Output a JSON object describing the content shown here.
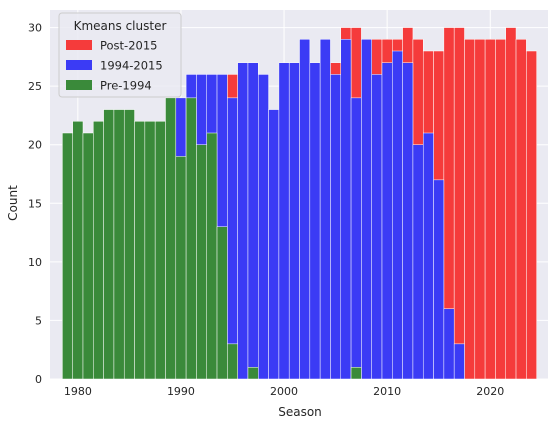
{
  "chart_data": {
    "type": "bar",
    "stacked": true,
    "xlabel": "Season",
    "ylabel": "Count",
    "xlim": [
      1977.3,
      2025.6
    ],
    "ylim": [
      0,
      31.5
    ],
    "x_ticks": [
      1980,
      1990,
      2000,
      2010,
      2020
    ],
    "y_ticks": [
      0,
      5,
      10,
      15,
      20,
      25,
      30
    ],
    "grid": true,
    "background": "#eaeaf2",
    "legend": {
      "title": "Kmeans cluster",
      "placement": "top-left"
    },
    "x": [
      1979,
      1980,
      1981,
      1982,
      1983,
      1984,
      1985,
      1986,
      1987,
      1988,
      1989,
      1990,
      1991,
      1992,
      1993,
      1994,
      1995,
      1996,
      1997,
      1998,
      1999,
      2000,
      2001,
      2002,
      2003,
      2004,
      2005,
      2006,
      2007,
      2008,
      2009,
      2010,
      2011,
      2012,
      2013,
      2014,
      2015,
      2016,
      2017,
      2018,
      2019,
      2020,
      2021,
      2022,
      2023,
      2024
    ],
    "series": [
      {
        "name": "Pre-1994",
        "color": "#3a8a3a",
        "values": [
          21,
          22,
          21,
          22,
          23,
          23,
          23,
          22,
          22,
          22,
          24,
          19,
          24,
          20,
          21,
          13,
          3,
          0,
          1,
          0,
          0,
          0,
          0,
          0,
          0,
          0,
          0,
          0,
          1,
          0,
          0,
          0,
          0,
          0,
          0,
          0,
          0,
          0,
          0,
          0,
          0,
          0,
          0,
          0,
          0,
          0
        ]
      },
      {
        "name": "1994-2015",
        "color": "#3b3bf5",
        "values": [
          0,
          0,
          0,
          0,
          0,
          0,
          0,
          0,
          0,
          0,
          0,
          5,
          2,
          6,
          5,
          13,
          21,
          27,
          26,
          26,
          23,
          27,
          27,
          29,
          27,
          29,
          26,
          29,
          23,
          29,
          26,
          27,
          28,
          27,
          20,
          21,
          17,
          6,
          3,
          0,
          0,
          0,
          0,
          0,
          0,
          0
        ]
      },
      {
        "name": "Post-2015",
        "color": "#f53b3b",
        "values": [
          0,
          0,
          0,
          0,
          0,
          0,
          0,
          0,
          0,
          0,
          0,
          0,
          0,
          0,
          0,
          0,
          2,
          0,
          0,
          0,
          0,
          0,
          0,
          0,
          0,
          0,
          1,
          1,
          6,
          0,
          3,
          2,
          1,
          3,
          9,
          7,
          11,
          24,
          27,
          29,
          29,
          29,
          29,
          30,
          29,
          28
        ]
      }
    ]
  }
}
